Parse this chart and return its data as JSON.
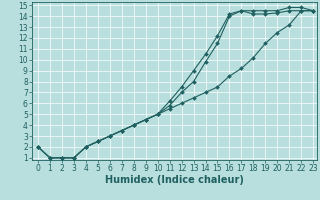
{
  "title": "",
  "xlabel": "Humidex (Indice chaleur)",
  "ylabel": "",
  "bg_color": "#b8dede",
  "line_color": "#206060",
  "xlim_min": -0.5,
  "xlim_max": 23.3,
  "ylim_min": 0.8,
  "ylim_max": 15.3,
  "xticks": [
    0,
    1,
    2,
    3,
    4,
    5,
    6,
    7,
    8,
    9,
    10,
    11,
    12,
    13,
    14,
    15,
    16,
    17,
    18,
    19,
    20,
    21,
    22,
    23
  ],
  "yticks": [
    1,
    2,
    3,
    4,
    5,
    6,
    7,
    8,
    9,
    10,
    11,
    12,
    13,
    14,
    15
  ],
  "line1_x": [
    0,
    1,
    2,
    3,
    4,
    5,
    6,
    7,
    8,
    9,
    10,
    11,
    12,
    13,
    14,
    15,
    16,
    17,
    18,
    19,
    20,
    21,
    22,
    23
  ],
  "line1_y": [
    2,
    1,
    1,
    1,
    2,
    2.5,
    3,
    3.5,
    4,
    4.5,
    5,
    6.2,
    7.5,
    9,
    10.5,
    12.2,
    14.2,
    14.5,
    14.5,
    14.5,
    14.5,
    14.8,
    14.8,
    14.5
  ],
  "line2_x": [
    0,
    1,
    2,
    3,
    4,
    5,
    6,
    7,
    8,
    9,
    10,
    11,
    12,
    13,
    14,
    15,
    16,
    17,
    18,
    19,
    20,
    21,
    22,
    23
  ],
  "line2_y": [
    2,
    1,
    1,
    1,
    2,
    2.5,
    3,
    3.5,
    4,
    4.5,
    5,
    5.8,
    7,
    8,
    9.8,
    11.5,
    14,
    14.5,
    14.2,
    14.2,
    14.3,
    14.5,
    14.5,
    14.5
  ],
  "line3_x": [
    0,
    1,
    2,
    3,
    4,
    5,
    6,
    7,
    8,
    9,
    10,
    11,
    12,
    13,
    14,
    15,
    16,
    17,
    18,
    19,
    20,
    21,
    22,
    23
  ],
  "line3_y": [
    2,
    1,
    1,
    1,
    2,
    2.5,
    3,
    3.5,
    4,
    4.5,
    5,
    5.5,
    6,
    6.5,
    7,
    7.5,
    8.5,
    9.2,
    10.2,
    11.5,
    12.5,
    13.2,
    14.5,
    14.5
  ],
  "marker": "D",
  "markersize": 2.0,
  "linewidth": 0.8,
  "grid_color": "#ffffff",
  "xlabel_fontsize": 7,
  "tick_fontsize": 5.5
}
